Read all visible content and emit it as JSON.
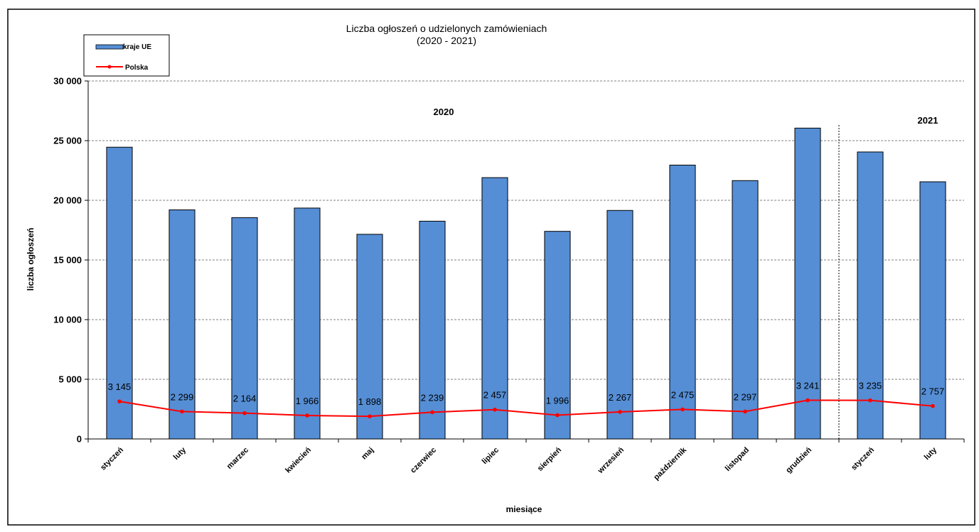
{
  "chart_data": {
    "type": "bar",
    "title": "Liczba ogłoszeń o udzielonych zamówieniach",
    "subtitle": "(2020 - 2021)",
    "xlabel": "miesiące",
    "ylabel": "liczba ogłoszeń",
    "ylim": [
      0,
      30000
    ],
    "yticks": [
      0,
      5000,
      10000,
      15000,
      20000,
      25000,
      30000
    ],
    "ytick_labels": [
      "0",
      "5 000",
      "10 000",
      "15 000",
      "20 000",
      "25 000",
      "30 000"
    ],
    "grid": true,
    "legend_position": "top-left",
    "categories": [
      "styczeń",
      "luty",
      "marzec",
      "kwiecień",
      "maj",
      "czerwiec",
      "lipiec",
      "sierpień",
      "wrzesień",
      "październik",
      "listopad",
      "grudzień",
      "styczeń",
      "luty"
    ],
    "group_labels": [
      "2020",
      "2021"
    ],
    "series": [
      {
        "name": "kraje UE",
        "type": "bar",
        "color": "#558ed5",
        "values": [
          24450,
          19200,
          18550,
          19350,
          17150,
          18250,
          21900,
          17400,
          19150,
          22950,
          21650,
          26050,
          24050,
          21550
        ]
      },
      {
        "name": "Polska",
        "type": "line",
        "color": "#ff0000",
        "values": [
          3145,
          2299,
          2164,
          1966,
          1898,
          2239,
          2457,
          1996,
          2267,
          2475,
          2297,
          3241,
          3235,
          2757
        ],
        "value_labels": [
          "3 145",
          "2 299",
          "2 164",
          "1 966",
          "1 898",
          "2 239",
          "2 457",
          "1 996",
          "2 267",
          "2 475",
          "2 297",
          "3 241",
          "3 235",
          "2 757"
        ]
      }
    ]
  }
}
